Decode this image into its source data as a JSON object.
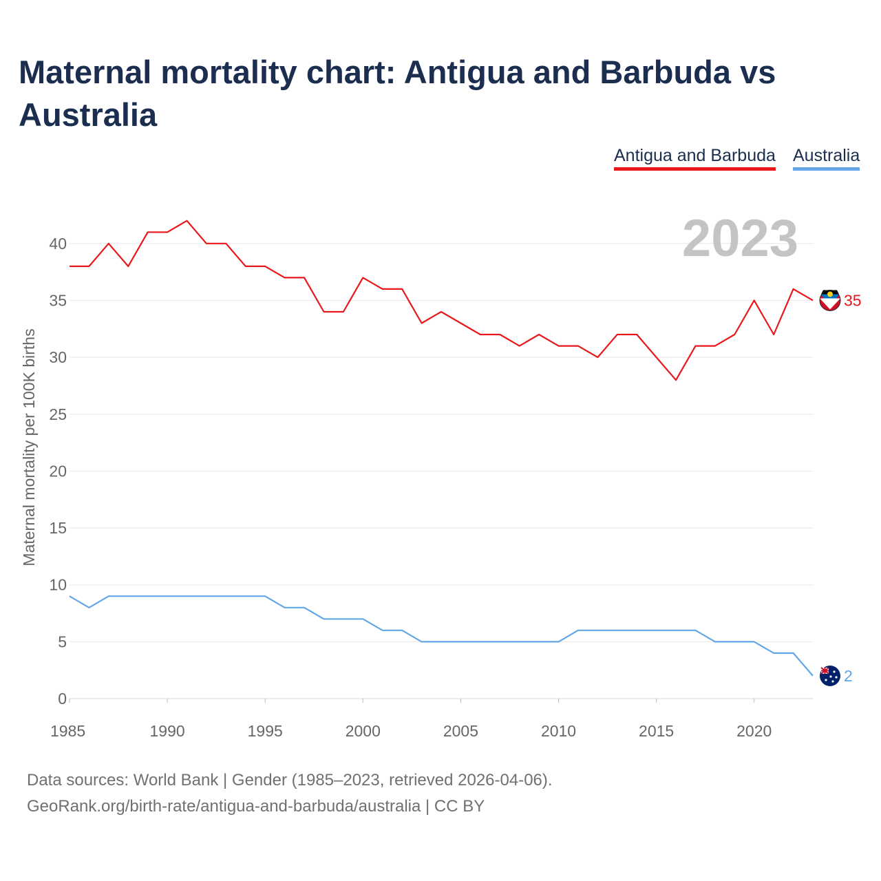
{
  "title": "Maternal mortality chart: Antigua and Barbuda vs Australia",
  "legend": [
    {
      "name": "Antigua and Barbuda",
      "color": "#e8171b"
    },
    {
      "name": "Australia",
      "color": "#62a6e6"
    }
  ],
  "year_label": "2023",
  "footer": {
    "source": "Data sources: World Bank | Gender (1985–2023, retrieved 2026-04-06).",
    "credit": "GeoRank.org/birth-rate/antigua-and-barbuda/australia | CC BY"
  },
  "chart_data": {
    "type": "line",
    "title": "Maternal mortality chart: Antigua and Barbuda vs Australia",
    "xlabel": "",
    "ylabel": "Maternal mortality per 100K births",
    "xlim": [
      1985,
      2023
    ],
    "ylim": [
      0,
      43
    ],
    "x_ticks": [
      1985,
      1990,
      1995,
      2000,
      2005,
      2010,
      2015,
      2020
    ],
    "y_ticks": [
      0,
      5,
      10,
      15,
      20,
      25,
      30,
      35,
      40
    ],
    "grid": true,
    "x": [
      1985,
      1986,
      1987,
      1988,
      1989,
      1990,
      1991,
      1992,
      1993,
      1994,
      1995,
      1996,
      1997,
      1998,
      1999,
      2000,
      2001,
      2002,
      2003,
      2004,
      2005,
      2006,
      2007,
      2008,
      2009,
      2010,
      2011,
      2012,
      2013,
      2014,
      2015,
      2016,
      2017,
      2018,
      2019,
      2020,
      2021,
      2022,
      2023
    ],
    "series": [
      {
        "name": "Antigua and Barbuda",
        "color": "#e8171b",
        "end_label": "35",
        "values": [
          38,
          38,
          40,
          38,
          41,
          41,
          42,
          40,
          40,
          38,
          38,
          37,
          37,
          34,
          34,
          37,
          36,
          36,
          33,
          34,
          33,
          32,
          32,
          31,
          32,
          31,
          31,
          30,
          32,
          32,
          30,
          28,
          31,
          31,
          32,
          35,
          32,
          36,
          35
        ]
      },
      {
        "name": "Australia",
        "color": "#62a6e6",
        "end_label": "2",
        "values": [
          9,
          8,
          9,
          9,
          9,
          9,
          9,
          9,
          9,
          9,
          9,
          8,
          8,
          7,
          7,
          7,
          6,
          6,
          5,
          5,
          5,
          5,
          5,
          5,
          5,
          5,
          6,
          6,
          6,
          6,
          6,
          6,
          6,
          5,
          5,
          5,
          4,
          4,
          2
        ]
      }
    ]
  }
}
